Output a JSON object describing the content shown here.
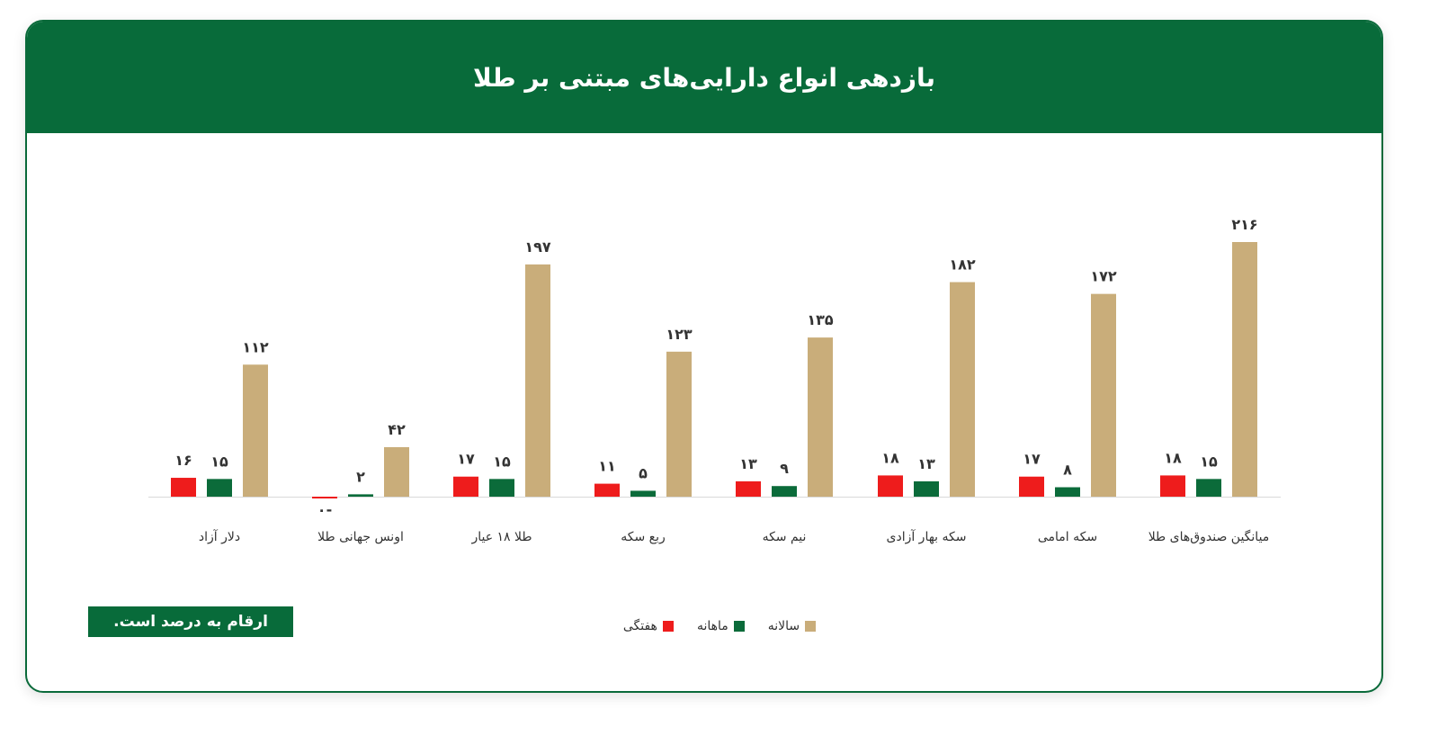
{
  "chart_data": {
    "type": "bar",
    "title": "بازدهی انواع دارایی‌های مبتنی بر طلا",
    "categories": [
      "دلار آزاد",
      "اونس جهانی طلا",
      "طلا ۱۸ عیار",
      "ربع سکه",
      "نیم سکه",
      "سکه بهار آزادی",
      "سکه امامی",
      "میانگین صندوق‌های طلا"
    ],
    "series": [
      {
        "name": "هفتگی",
        "color": "#ee1c1c",
        "values": [
          16,
          -0.1,
          17,
          11,
          13,
          18,
          17,
          18
        ],
        "labels": [
          "۱۶",
          "۰-",
          "۱۷",
          "۱۱",
          "۱۳",
          "۱۸",
          "۱۷",
          "۱۸"
        ]
      },
      {
        "name": "ماهانه",
        "color": "#0b6b3a",
        "values": [
          15,
          2,
          15,
          5,
          9,
          13,
          8,
          15
        ],
        "labels": [
          "۱۵",
          "۲",
          "۱۵",
          "۵",
          "۹",
          "۱۳",
          "۸",
          "۱۵"
        ]
      },
      {
        "name": "سالانه",
        "color": "#c9ad7a",
        "values": [
          112,
          42,
          197,
          123,
          135,
          182,
          172,
          216
        ],
        "labels": [
          "۱۱۲",
          "۴۲",
          "۱۹۷",
          "۱۲۳",
          "۱۳۵",
          "۱۸۲",
          "۱۷۲",
          "۲۱۶"
        ]
      }
    ],
    "ylim": [
      -3,
      230
    ],
    "grid": false,
    "legend": "bottom"
  },
  "note": "ارقام به درصد است."
}
